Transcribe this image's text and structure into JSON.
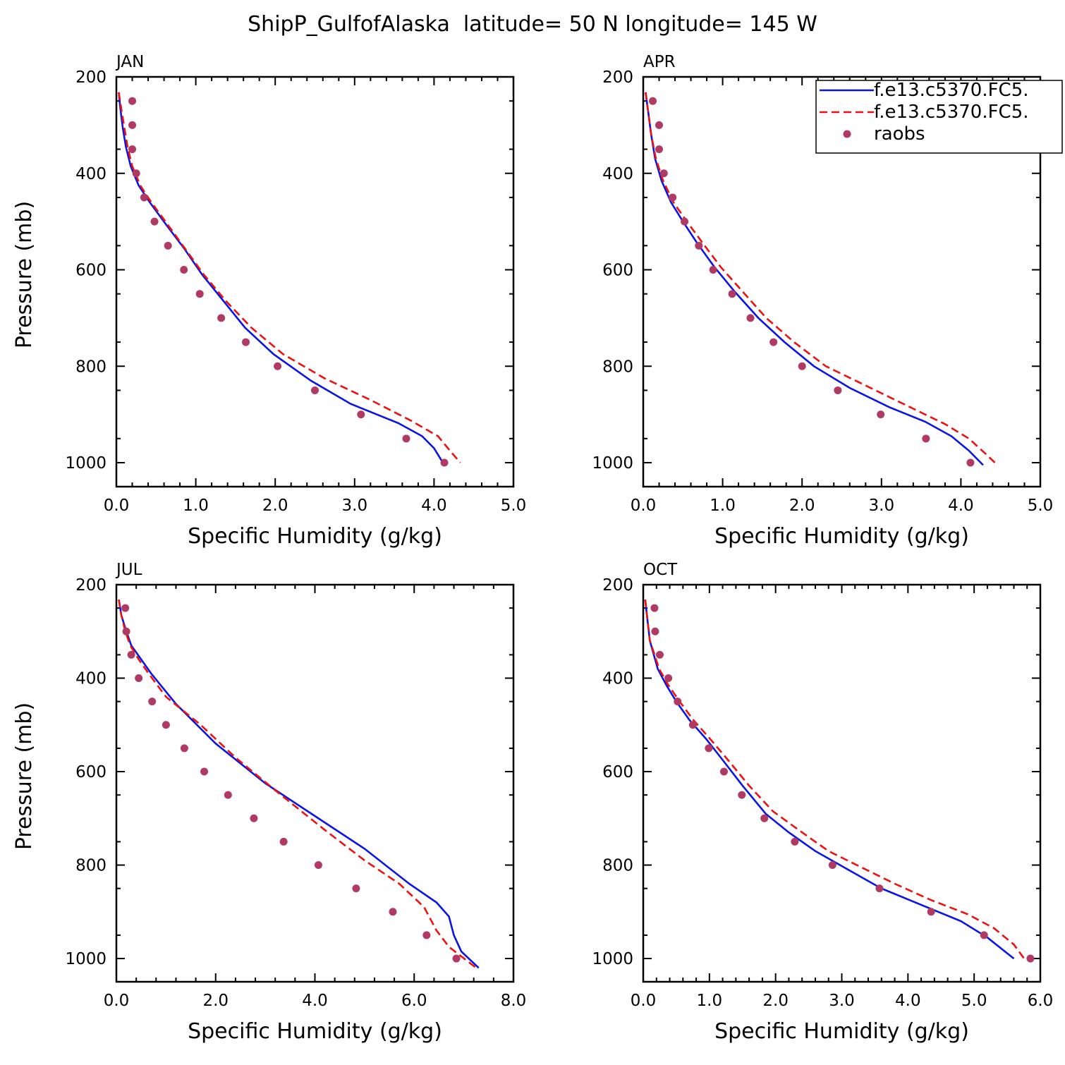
{
  "title": "ShipP_GulfofAlaska  latitude= 50 N longitude= 145 W",
  "legend": {
    "entries": [
      "f.e13.c5370.FC5.",
      "f.e13.c5370.FC5.",
      "raobs"
    ]
  },
  "colors": {
    "model1": "#0a14e6",
    "model2": "#ee1111",
    "obs": "#b03a62"
  },
  "chart_data": [
    {
      "type": "line",
      "panel": "JAN",
      "xlabel": "Specific Humidity (g/kg)",
      "ylabel": "Pressure (mb)",
      "xlim": [
        0,
        5
      ],
      "ylim": [
        1025,
        200
      ],
      "xticks": [
        0,
        1,
        2,
        3,
        4,
        5
      ],
      "xtick_labels": [
        "0.0",
        "1.0",
        "2.0",
        "3.0",
        "4.0",
        "5.0"
      ],
      "yticks": [
        200,
        400,
        600,
        800,
        1000
      ],
      "ytick_labels": [
        "200",
        "400",
        "600",
        "800",
        "1000"
      ],
      "series": [
        {
          "values": [
            [
              0.03,
              232
            ],
            [
              0.05,
              265
            ],
            [
              0.08,
              305
            ],
            [
              0.12,
              345
            ],
            [
              0.18,
              385
            ],
            [
              0.28,
              425
            ],
            [
              0.42,
              460
            ],
            [
              0.62,
              505
            ],
            [
              0.85,
              555
            ],
            [
              1.08,
              610
            ],
            [
              1.35,
              665
            ],
            [
              1.62,
              720
            ],
            [
              1.98,
              775
            ],
            [
              2.45,
              830
            ],
            [
              2.95,
              878
            ],
            [
              3.55,
              918
            ],
            [
              3.85,
              945
            ],
            [
              4.0,
              970
            ],
            [
              4.13,
              1005
            ]
          ]
        },
        {
          "values": [
            [
              0.03,
              232
            ],
            [
              0.06,
              265
            ],
            [
              0.1,
              305
            ],
            [
              0.14,
              345
            ],
            [
              0.2,
              385
            ],
            [
              0.3,
              425
            ],
            [
              0.44,
              460
            ],
            [
              0.64,
              505
            ],
            [
              0.86,
              555
            ],
            [
              1.1,
              610
            ],
            [
              1.38,
              665
            ],
            [
              1.7,
              720
            ],
            [
              2.1,
              775
            ],
            [
              2.62,
              825
            ],
            [
              3.2,
              870
            ],
            [
              3.7,
              912
            ],
            [
              4.05,
              945
            ],
            [
              4.2,
              975
            ],
            [
              4.33,
              1000
            ]
          ]
        },
        {
          "values": [
            [
              0.2,
              250
            ],
            [
              0.2,
              300
            ],
            [
              0.2,
              350
            ],
            [
              0.25,
              400
            ],
            [
              0.35,
              450
            ],
            [
              0.48,
              500
            ],
            [
              0.65,
              550
            ],
            [
              0.85,
              600
            ],
            [
              1.05,
              650
            ],
            [
              1.32,
              700
            ],
            [
              1.63,
              750
            ],
            [
              2.03,
              800
            ],
            [
              2.5,
              850
            ],
            [
              3.08,
              900
            ],
            [
              3.65,
              950
            ],
            [
              4.13,
              1000
            ]
          ]
        }
      ]
    },
    {
      "type": "line",
      "panel": "APR",
      "xlabel": "Specific Humidity (g/kg)",
      "ylabel": "",
      "xlim": [
        0,
        5
      ],
      "ylim": [
        1025,
        200
      ],
      "xticks": [
        0,
        1,
        2,
        3,
        4,
        5
      ],
      "xtick_labels": [
        "0.0",
        "1.0",
        "2.0",
        "3.0",
        "4.0",
        "5.0"
      ],
      "yticks": [
        200,
        400,
        600,
        800,
        1000
      ],
      "ytick_labels": [
        "200",
        "400",
        "600",
        "800",
        "1000"
      ],
      "series": [
        {
          "values": [
            [
              0.03,
              232
            ],
            [
              0.06,
              270
            ],
            [
              0.1,
              320
            ],
            [
              0.15,
              370
            ],
            [
              0.23,
              415
            ],
            [
              0.35,
              460
            ],
            [
              0.5,
              500
            ],
            [
              0.68,
              545
            ],
            [
              0.9,
              595
            ],
            [
              1.15,
              645
            ],
            [
              1.45,
              700
            ],
            [
              1.78,
              750
            ],
            [
              2.15,
              800
            ],
            [
              2.6,
              845
            ],
            [
              3.1,
              885
            ],
            [
              3.55,
              915
            ],
            [
              3.88,
              945
            ],
            [
              4.1,
              975
            ],
            [
              4.28,
              1005
            ]
          ]
        },
        {
          "values": [
            [
              0.03,
              232
            ],
            [
              0.06,
              270
            ],
            [
              0.1,
              320
            ],
            [
              0.16,
              370
            ],
            [
              0.25,
              415
            ],
            [
              0.38,
              460
            ],
            [
              0.55,
              500
            ],
            [
              0.75,
              545
            ],
            [
              0.98,
              595
            ],
            [
              1.25,
              645
            ],
            [
              1.55,
              700
            ],
            [
              1.9,
              750
            ],
            [
              2.3,
              800
            ],
            [
              2.8,
              840
            ],
            [
              3.3,
              880
            ],
            [
              3.8,
              920
            ],
            [
              4.1,
              950
            ],
            [
              4.3,
              980
            ],
            [
              4.46,
              1005
            ]
          ]
        },
        {
          "values": [
            [
              0.12,
              250
            ],
            [
              0.2,
              300
            ],
            [
              0.2,
              350
            ],
            [
              0.26,
              400
            ],
            [
              0.37,
              450
            ],
            [
              0.52,
              500
            ],
            [
              0.7,
              550
            ],
            [
              0.88,
              600
            ],
            [
              1.12,
              650
            ],
            [
              1.35,
              700
            ],
            [
              1.64,
              750
            ],
            [
              2.0,
              800
            ],
            [
              2.45,
              850
            ],
            [
              2.99,
              900
            ],
            [
              3.56,
              950
            ],
            [
              4.12,
              1000
            ]
          ]
        }
      ]
    },
    {
      "type": "line",
      "panel": "JUL",
      "xlabel": "Specific Humidity (g/kg)",
      "ylabel": "Pressure (mb)",
      "xlim": [
        0,
        8
      ],
      "ylim": [
        1025,
        200
      ],
      "xticks": [
        0,
        2,
        4,
        6,
        8
      ],
      "xtick_labels": [
        "0.0",
        "2.0",
        "4.0",
        "6.0",
        "8.0"
      ],
      "yticks": [
        200,
        400,
        600,
        800,
        1000
      ],
      "ytick_labels": [
        "200",
        "400",
        "600",
        "800",
        "1000"
      ],
      "series": [
        {
          "values": [
            [
              0.05,
              232
            ],
            [
              0.1,
              265
            ],
            [
              0.2,
              300
            ],
            [
              0.3,
              330
            ],
            [
              0.5,
              360
            ],
            [
              0.7,
              390
            ],
            [
              1.2,
              455
            ],
            [
              2.0,
              540
            ],
            [
              3.0,
              625
            ],
            [
              4.0,
              695
            ],
            [
              5.0,
              765
            ],
            [
              5.9,
              840
            ],
            [
              6.45,
              880
            ],
            [
              6.7,
              910
            ],
            [
              6.8,
              950
            ],
            [
              6.95,
              985
            ],
            [
              7.3,
              1020
            ]
          ]
        },
        {
          "values": [
            [
              0.05,
              232
            ],
            [
              0.1,
              265
            ],
            [
              0.18,
              300
            ],
            [
              0.28,
              330
            ],
            [
              0.45,
              360
            ],
            [
              0.65,
              390
            ],
            [
              1.0,
              440
            ],
            [
              1.7,
              500
            ],
            [
              2.4,
              570
            ],
            [
              3.2,
              640
            ],
            [
              4.2,
              725
            ],
            [
              5.0,
              790
            ],
            [
              5.7,
              840
            ],
            [
              6.2,
              890
            ],
            [
              6.45,
              940
            ],
            [
              6.7,
              975
            ],
            [
              7.25,
              1020
            ]
          ]
        },
        {
          "values": [
            [
              0.18,
              250
            ],
            [
              0.2,
              300
            ],
            [
              0.3,
              350
            ],
            [
              0.45,
              400
            ],
            [
              0.72,
              450
            ],
            [
              1.0,
              500
            ],
            [
              1.37,
              550
            ],
            [
              1.77,
              600
            ],
            [
              2.25,
              650
            ],
            [
              2.77,
              700
            ],
            [
              3.37,
              750
            ],
            [
              4.07,
              800
            ],
            [
              4.83,
              850
            ],
            [
              5.57,
              900
            ],
            [
              6.25,
              950
            ],
            [
              6.85,
              1000
            ]
          ]
        }
      ]
    },
    {
      "type": "line",
      "panel": "OCT",
      "xlabel": "Specific Humidity (g/kg)",
      "ylabel": "",
      "xlim": [
        0,
        6
      ],
      "ylim": [
        1025,
        200
      ],
      "xticks": [
        0,
        1,
        2,
        3,
        4,
        5,
        6
      ],
      "xtick_labels": [
        "0.0",
        "1.0",
        "2.0",
        "3.0",
        "4.0",
        "5.0",
        "6.0"
      ],
      "yticks": [
        200,
        400,
        600,
        800,
        1000
      ],
      "ytick_labels": [
        "200",
        "400",
        "600",
        "800",
        "1000"
      ],
      "series": [
        {
          "values": [
            [
              0.03,
              232
            ],
            [
              0.06,
              270
            ],
            [
              0.1,
              320
            ],
            [
              0.15,
              345
            ],
            [
              0.22,
              380
            ],
            [
              0.35,
              415
            ],
            [
              0.5,
              450
            ],
            [
              0.7,
              490
            ],
            [
              0.95,
              530
            ],
            [
              1.2,
              575
            ],
            [
              1.5,
              630
            ],
            [
              1.85,
              690
            ],
            [
              2.2,
              730
            ],
            [
              2.6,
              770
            ],
            [
              3.1,
              810
            ],
            [
              3.6,
              850
            ],
            [
              4.2,
              885
            ],
            [
              4.8,
              920
            ],
            [
              5.2,
              955
            ],
            [
              5.6,
              1000
            ]
          ]
        },
        {
          "values": [
            [
              0.03,
              232
            ],
            [
              0.06,
              270
            ],
            [
              0.1,
              320
            ],
            [
              0.16,
              345
            ],
            [
              0.24,
              380
            ],
            [
              0.38,
              415
            ],
            [
              0.55,
              450
            ],
            [
              0.76,
              490
            ],
            [
              1.01,
              530
            ],
            [
              1.28,
              575
            ],
            [
              1.6,
              630
            ],
            [
              1.96,
              685
            ],
            [
              2.35,
              725
            ],
            [
              2.8,
              770
            ],
            [
              3.3,
              805
            ],
            [
              3.8,
              840
            ],
            [
              4.35,
              875
            ],
            [
              4.9,
              905
            ],
            [
              5.3,
              935
            ],
            [
              5.6,
              970
            ],
            [
              5.78,
              1005
            ]
          ]
        },
        {
          "values": [
            [
              0.17,
              250
            ],
            [
              0.18,
              300
            ],
            [
              0.25,
              350
            ],
            [
              0.38,
              400
            ],
            [
              0.52,
              450
            ],
            [
              0.75,
              500
            ],
            [
              0.99,
              550
            ],
            [
              1.22,
              600
            ],
            [
              1.49,
              650
            ],
            [
              1.83,
              700
            ],
            [
              2.29,
              750
            ],
            [
              2.86,
              800
            ],
            [
              3.57,
              850
            ],
            [
              4.35,
              900
            ],
            [
              5.15,
              950
            ],
            [
              5.85,
              1000
            ]
          ]
        }
      ]
    }
  ]
}
